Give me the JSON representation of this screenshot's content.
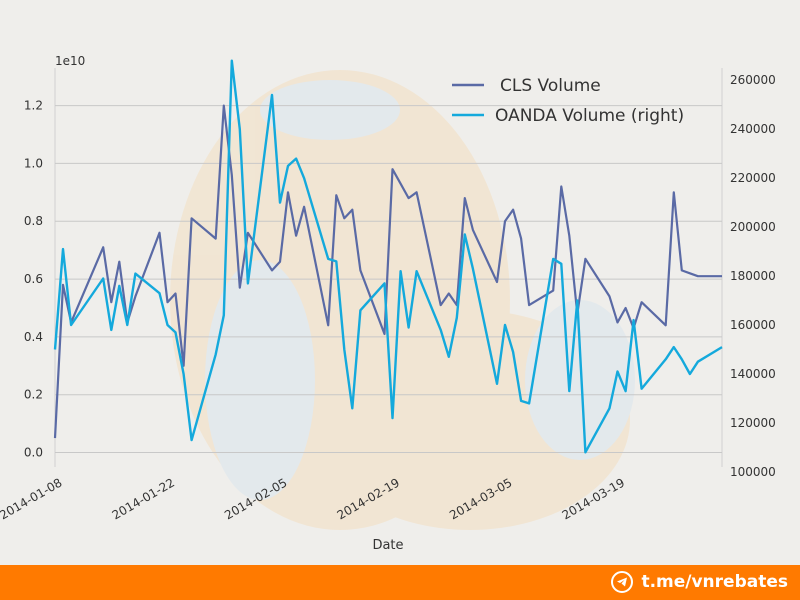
{
  "chart_data": {
    "type": "line",
    "title": "",
    "xlabel": "Date",
    "y_multiplier": "1e10",
    "y_left_ticks": [
      "0.0",
      "0.2",
      "0.4",
      "0.6",
      "0.8",
      "1.0",
      "1.2"
    ],
    "y_right_ticks": [
      "100000",
      "120000",
      "140000",
      "160000",
      "180000",
      "200000",
      "220000",
      "240000",
      "260000"
    ],
    "x_ticks": [
      "2014-01-08",
      "2014-01-22",
      "2014-02-05",
      "2014-02-19",
      "2014-03-05",
      "2014-03-19"
    ],
    "x_range": [
      "2014-01-07",
      "2014-03-31"
    ],
    "y_left_range": [
      -0.05,
      1.33
    ],
    "y_right_range": [
      102000,
      265000
    ],
    "grid": true,
    "legend_position": "top-right",
    "colors": {
      "cls": "#5a6aa5",
      "oanda": "#14a9dc"
    },
    "series": [
      {
        "name": "CLS Volume",
        "axis": "left",
        "x": [
          "2014-01-07",
          "2014-01-08",
          "2014-01-09",
          "2014-01-13",
          "2014-01-14",
          "2014-01-15",
          "2014-01-16",
          "2014-01-17",
          "2014-01-20",
          "2014-01-21",
          "2014-01-22",
          "2014-01-23",
          "2014-01-24",
          "2014-01-27",
          "2014-01-28",
          "2014-01-29",
          "2014-01-30",
          "2014-01-31",
          "2014-02-03",
          "2014-02-04",
          "2014-02-05",
          "2014-02-06",
          "2014-02-07",
          "2014-02-10",
          "2014-02-11",
          "2014-02-12",
          "2014-02-13",
          "2014-02-14",
          "2014-02-17",
          "2014-02-18",
          "2014-02-19",
          "2014-02-20",
          "2014-02-21",
          "2014-02-24",
          "2014-02-25",
          "2014-02-26",
          "2014-02-27",
          "2014-02-28",
          "2014-03-03",
          "2014-03-04",
          "2014-03-05",
          "2014-03-06",
          "2014-03-07",
          "2014-03-10",
          "2014-03-11",
          "2014-03-12",
          "2014-03-13",
          "2014-03-14",
          "2014-03-17",
          "2014-03-18",
          "2014-03-19",
          "2014-03-20",
          "2014-03-21",
          "2014-03-24",
          "2014-03-25",
          "2014-03-26",
          "2014-03-27",
          "2014-03-28",
          "2014-03-31"
        ],
        "values": [
          0.05,
          0.58,
          0.45,
          0.71,
          0.52,
          0.66,
          0.45,
          0.54,
          0.76,
          0.52,
          0.55,
          0.3,
          0.81,
          0.74,
          1.2,
          0.96,
          0.57,
          0.76,
          0.63,
          0.66,
          0.9,
          0.75,
          0.85,
          0.44,
          0.89,
          0.81,
          0.84,
          0.63,
          0.41,
          0.98,
          0.93,
          0.88,
          0.9,
          0.51,
          0.55,
          0.51,
          0.88,
          0.77,
          0.59,
          0.8,
          0.84,
          0.74,
          0.51,
          0.56,
          0.92,
          0.75,
          0.48,
          0.67,
          0.54,
          0.45,
          0.5,
          0.43,
          0.52,
          0.44,
          0.9,
          0.63,
          0.62,
          0.61,
          0.61
        ]
      },
      {
        "name": "OANDA Volume (right)",
        "axis": "right",
        "x": [
          "2014-01-07",
          "2014-01-08",
          "2014-01-09",
          "2014-01-13",
          "2014-01-14",
          "2014-01-15",
          "2014-01-16",
          "2014-01-17",
          "2014-01-20",
          "2014-01-21",
          "2014-01-22",
          "2014-01-23",
          "2014-01-24",
          "2014-01-27",
          "2014-01-28",
          "2014-01-29",
          "2014-01-30",
          "2014-01-31",
          "2014-02-03",
          "2014-02-04",
          "2014-02-05",
          "2014-02-06",
          "2014-02-07",
          "2014-02-10",
          "2014-02-11",
          "2014-02-12",
          "2014-02-13",
          "2014-02-14",
          "2014-02-17",
          "2014-02-18",
          "2014-02-19",
          "2014-02-20",
          "2014-02-21",
          "2014-02-24",
          "2014-02-25",
          "2014-02-26",
          "2014-02-27",
          "2014-02-28",
          "2014-03-03",
          "2014-03-04",
          "2014-03-05",
          "2014-03-06",
          "2014-03-07",
          "2014-03-10",
          "2014-03-11",
          "2014-03-12",
          "2014-03-13",
          "2014-03-14",
          "2014-03-17",
          "2014-03-18",
          "2014-03-19",
          "2014-03-20",
          "2014-03-21",
          "2014-03-24",
          "2014-03-25",
          "2014-03-26",
          "2014-03-27",
          "2014-03-28",
          "2014-03-31"
        ],
        "values": [
          150000,
          191000,
          160000,
          179000,
          158000,
          176000,
          160000,
          181000,
          173000,
          160000,
          157000,
          140000,
          113000,
          148000,
          164000,
          268000,
          240000,
          177000,
          254000,
          210000,
          225000,
          228000,
          220000,
          187000,
          186000,
          150000,
          126000,
          166000,
          177000,
          122000,
          182000,
          159000,
          182000,
          158000,
          147000,
          163000,
          197000,
          183000,
          136000,
          160000,
          149000,
          129000,
          128000,
          187000,
          185000,
          133000,
          170000,
          108000,
          126000,
          141000,
          133000,
          162000,
          134000,
          146000,
          151000,
          146000,
          140000,
          145000,
          151000
        ]
      }
    ]
  },
  "footer": {
    "handle": "t.me/vnrebates"
  }
}
